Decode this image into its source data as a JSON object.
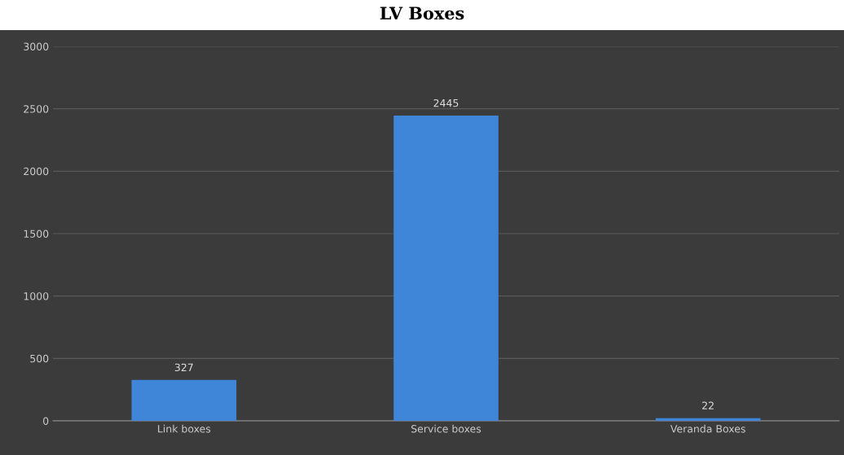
{
  "chart_data": {
    "type": "bar",
    "title": "LV Boxes",
    "categories": [
      "Link boxes",
      "Service boxes",
      "Veranda Boxes"
    ],
    "values": [
      327,
      2445,
      22
    ],
    "color": "#3f85d8",
    "ylim": [
      0,
      3000
    ],
    "yticks": [
      0,
      500,
      1000,
      1500,
      2000,
      2500,
      3000
    ],
    "grid": "y",
    "data_labels": true
  }
}
